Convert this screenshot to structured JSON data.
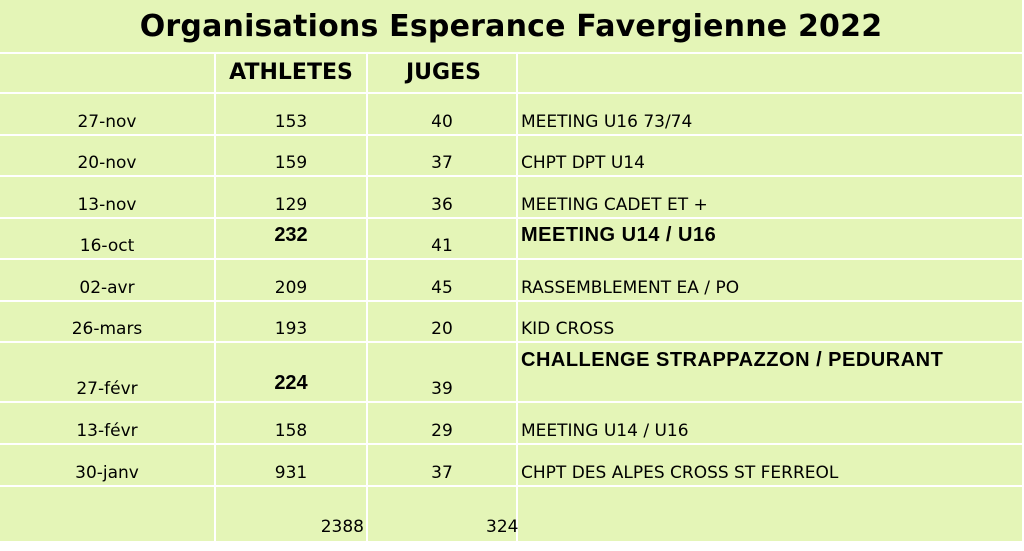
{
  "title": "Organisations Esperance Favergienne 2022",
  "headers": {
    "date": "",
    "athletes": "ATHLETES",
    "juges": "JUGES",
    "event": ""
  },
  "rows": [
    {
      "date": "27-nov",
      "athletes": "153",
      "juges": "40",
      "event": "MEETING U16 73/74"
    },
    {
      "date": "20-nov",
      "athletes": "159",
      "juges": "37",
      "event": "CHPT DPT U14"
    },
    {
      "date": "13-nov",
      "athletes": "129",
      "juges": "36",
      "event": "MEETING CADET ET +"
    },
    {
      "date": "16-oct",
      "athletes": "232",
      "juges": "41",
      "event": "MEETING U14 / U16"
    },
    {
      "date": "02-avr",
      "athletes": "209",
      "juges": "45",
      "event": "RASSEMBLEMENT EA / PO"
    },
    {
      "date": "26-mars",
      "athletes": "193",
      "juges": "20",
      "event": "KID CROSS"
    },
    {
      "date": "27-févr",
      "athletes": "224",
      "juges": "39",
      "event": "CHALLENGE STRAPPAZZON / PEDURANT"
    },
    {
      "date": "13-févr",
      "athletes": "158",
      "juges": "29",
      "event": "MEETING U14 / U16"
    },
    {
      "date": "30-janv",
      "athletes": "931",
      "juges": "37",
      "event": "CHPT DES ALPES CROSS ST FERREOL"
    }
  ],
  "totals": {
    "athletes": "2388",
    "juges": "324"
  },
  "colors": {
    "cell_background": "#e4f5b7",
    "grid_lines": "#ffffff"
  }
}
